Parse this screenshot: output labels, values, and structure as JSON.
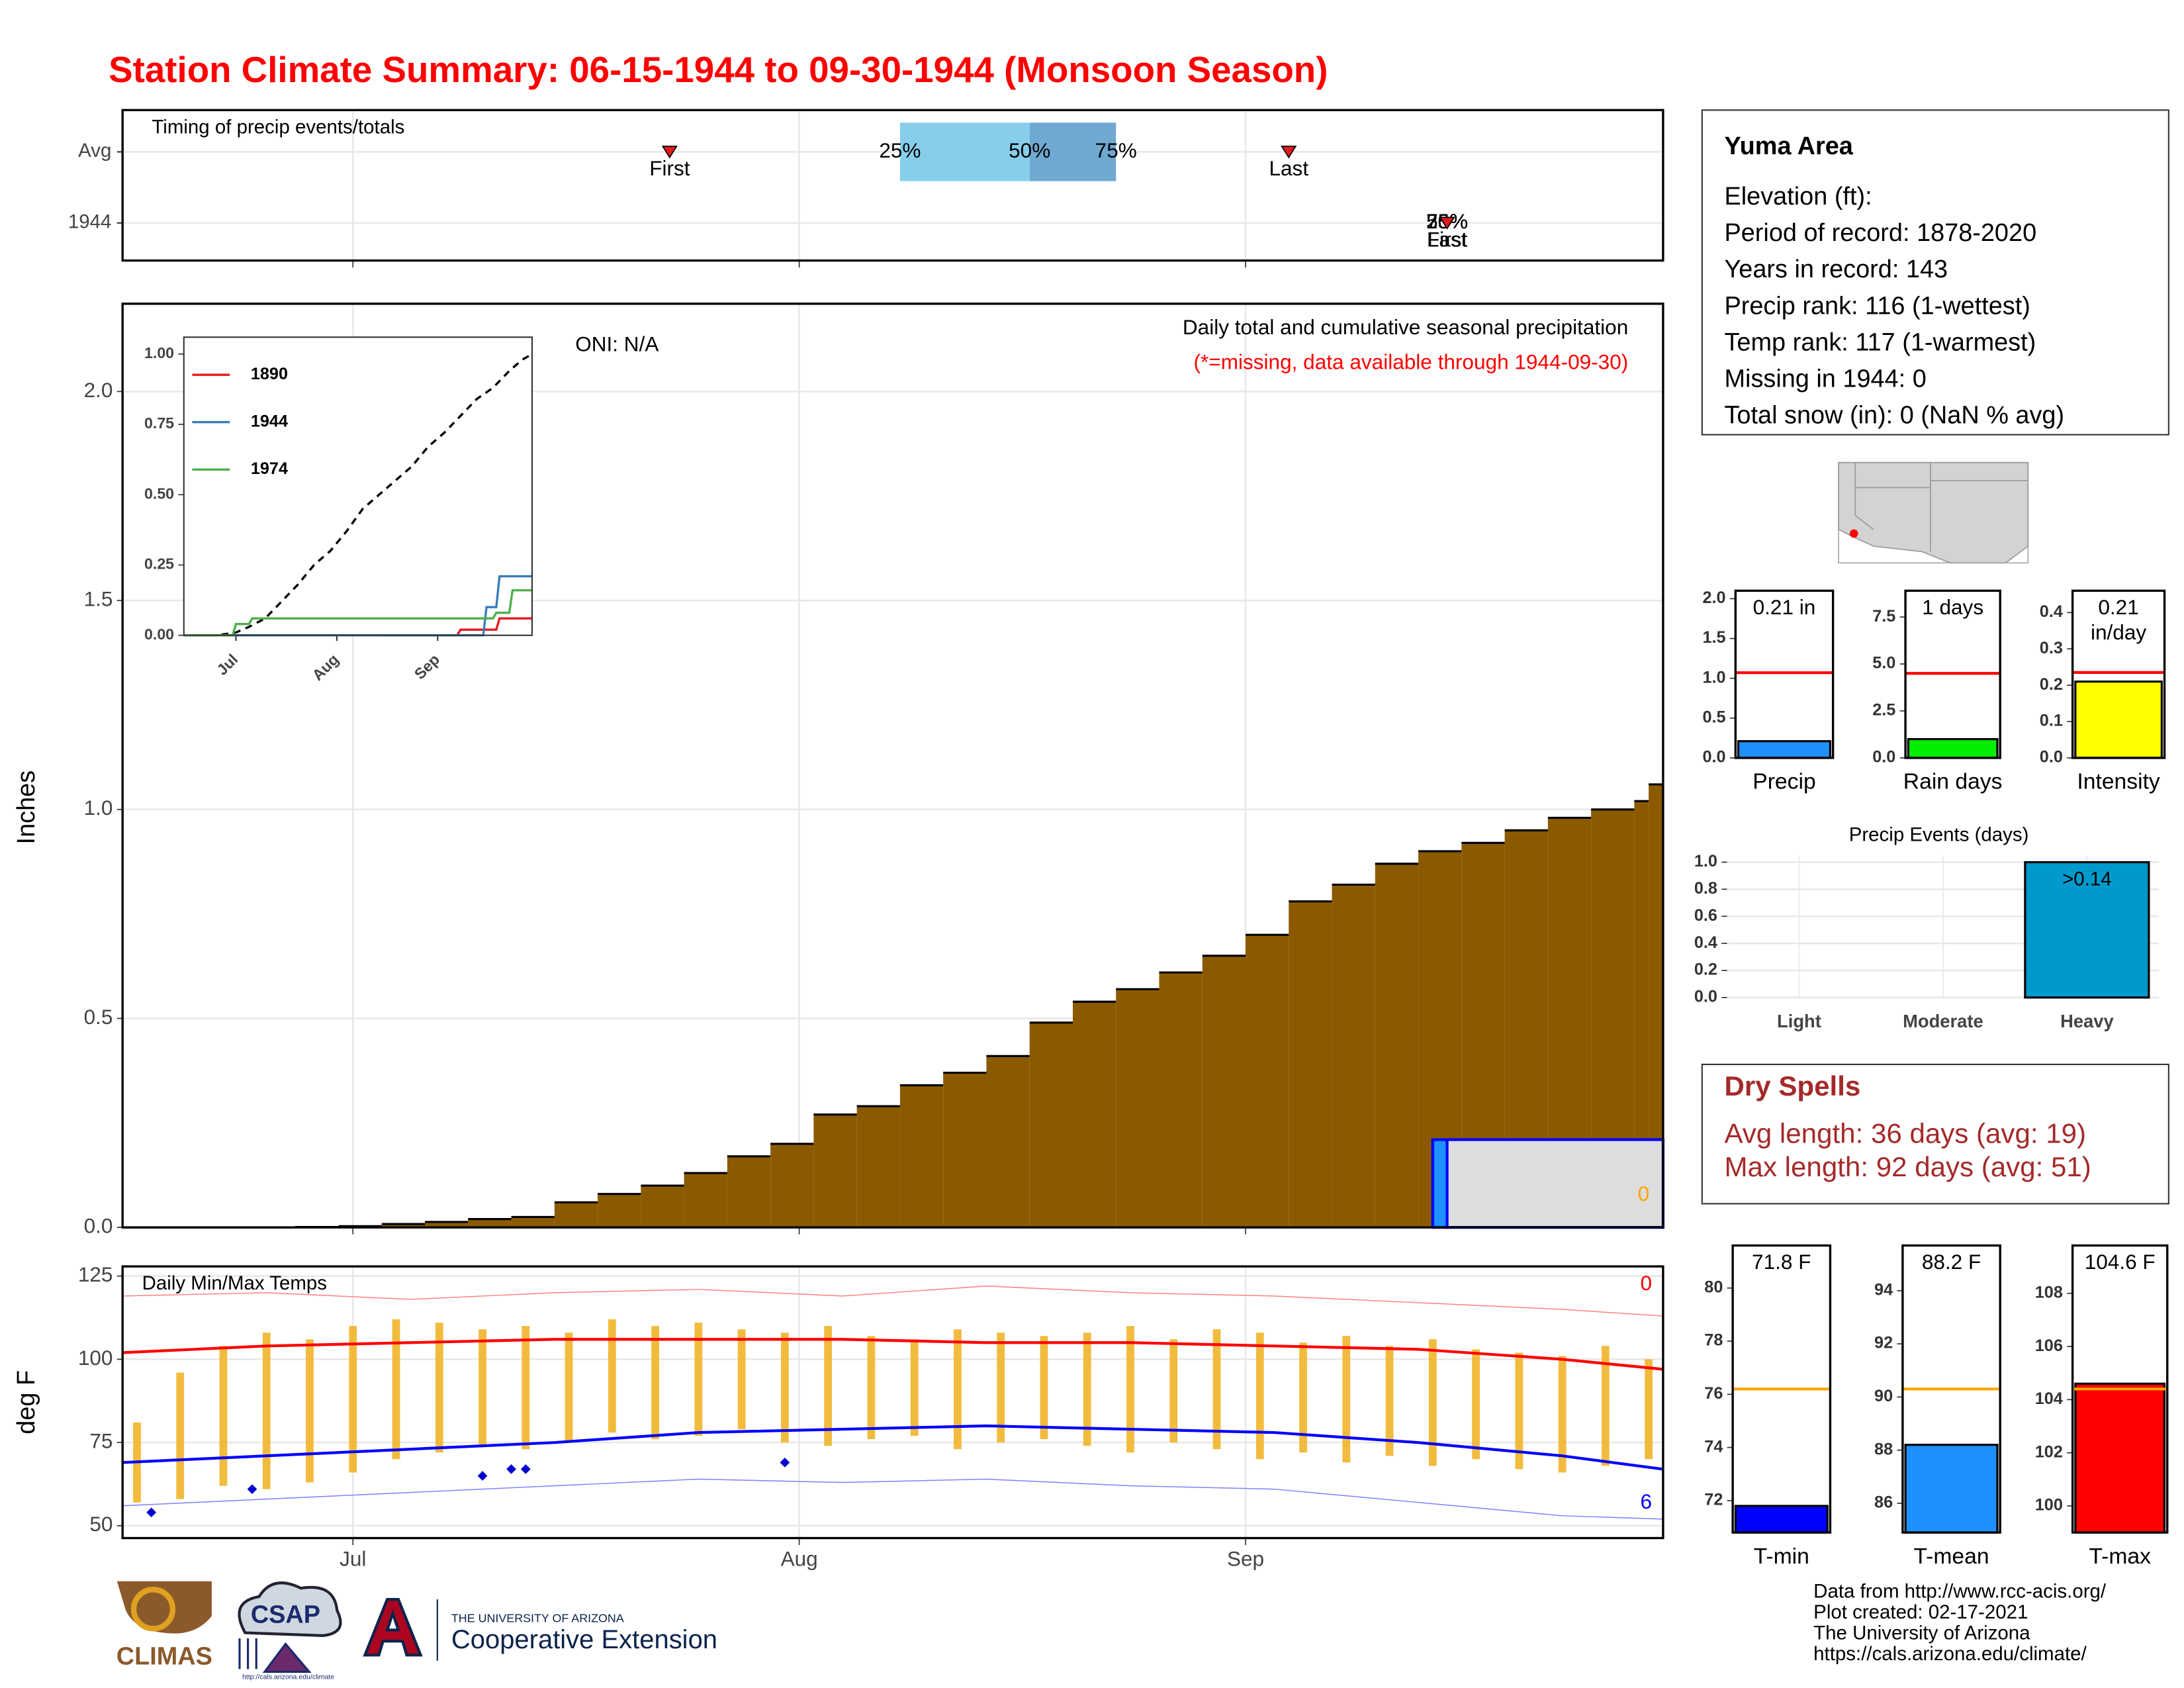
{
  "title": "Station Climate Summary: 06-15-1944 to 09-30-1944 (Monsoon Season)",
  "chart_data": [
    {
      "type": "timing",
      "title": "Timing of precip events/totals",
      "categories": [
        "Avg",
        "1944"
      ],
      "xlim": [
        0,
        107
      ],
      "xticks": [
        16,
        47,
        78
      ],
      "grid": true,
      "first": [
        38,
        92
      ],
      "last": [
        81,
        92
      ],
      "quartiles": [
        [
          54,
          63,
          69
        ],
        [
          92,
          92,
          92
        ]
      ],
      "marker_labels": [
        "First",
        "Last"
      ],
      "quartile_labels": [
        "25%",
        "50%",
        "75%"
      ],
      "marker_color": "#e41a1c",
      "quartile_colors": [
        "#87ceeb",
        "#6fa8d0"
      ]
    },
    {
      "type": "step_area",
      "ylabel": "Inches",
      "xlim": [
        0,
        107
      ],
      "xticks": [
        16,
        47,
        78
      ],
      "ylim": [
        0,
        2.21
      ],
      "yticks": [
        {
          "value": 0,
          "label": "0.0"
        },
        {
          "value": 0.5,
          "label": "0.5"
        },
        {
          "value": 1,
          "label": "1.0"
        },
        {
          "value": 1.5,
          "label": "1.5"
        },
        {
          "value": 2,
          "label": "2.0"
        }
      ],
      "grid": true,
      "annotations": [
        "ONI: N/A",
        "Daily total and cumulative seasonal precipitation",
        "(*=missing, data available through 1944-09-30)",
        "0"
      ],
      "series": [
        {
          "colors": [
            "#8b5a00"
          ],
          "x": [
            0,
            3,
            6,
            9,
            12,
            15,
            18,
            21,
            24,
            27,
            30,
            33,
            36,
            39,
            42,
            45,
            48,
            51,
            54,
            57,
            60,
            63,
            66,
            69,
            72,
            75,
            78,
            81,
            84,
            87,
            90,
            93,
            96,
            99,
            102,
            105,
            106
          ],
          "values": [
            0,
            0,
            0,
            0,
            0.001,
            0.003,
            0.008,
            0.013,
            0.02,
            0.025,
            0.06,
            0.08,
            0.1,
            0.13,
            0.17,
            0.2,
            0.27,
            0.29,
            0.34,
            0.37,
            0.41,
            0.49,
            0.54,
            0.57,
            0.61,
            0.65,
            0.7,
            0.78,
            0.82,
            0.87,
            0.9,
            0.92,
            0.95,
            0.98,
            1.0,
            1.02,
            1.06
          ]
        },
        {
          "colors": [
            "#1e90ff",
            "#dddddd"
          ],
          "stroke": "#0000ff",
          "x": [
            91,
            92
          ],
          "values": [
            0.21,
            0.21
          ]
        }
      ]
    },
    {
      "type": "line",
      "xlim": [
        0,
        107
      ],
      "xticks": [
        {
          "value": 16,
          "label": "Jul"
        },
        {
          "value": 47,
          "label": "Aug"
        },
        {
          "value": 78,
          "label": "Sep"
        }
      ],
      "ylim": [
        0,
        1.06
      ],
      "yticks": [
        {
          "value": 0,
          "label": "0.00"
        },
        {
          "value": 0.25,
          "label": "0.25"
        },
        {
          "value": 0.5,
          "label": "0.50"
        },
        {
          "value": 0.75,
          "label": "0.75"
        },
        {
          "value": 1,
          "label": "1.00"
        }
      ],
      "series": [
        {
          "color": "#000000",
          "dash": true,
          "x": [
            0,
            10,
            16,
            20,
            25,
            30,
            35,
            40,
            45,
            50,
            55,
            60,
            65,
            70,
            75,
            80,
            85,
            90,
            95,
            100,
            104,
            107
          ],
          "values": [
            0,
            0,
            0.01,
            0.03,
            0.06,
            0.12,
            0.18,
            0.25,
            0.3,
            0.37,
            0.45,
            0.5,
            0.55,
            0.6,
            0.67,
            0.72,
            0.78,
            0.84,
            0.88,
            0.94,
            0.98,
            1.0
          ]
        },
        {
          "name": "1890",
          "color": "#e41a1c",
          "x": [
            60,
            84,
            85,
            96,
            97,
            107
          ],
          "values": [
            0,
            0,
            0.02,
            0.02,
            0.06,
            0.06
          ]
        },
        {
          "name": "1944",
          "color": "#377eb8",
          "x": [
            0,
            92,
            93,
            96,
            97,
            107
          ],
          "values": [
            0,
            0,
            0.1,
            0.1,
            0.21,
            0.21
          ]
        },
        {
          "name": "1974",
          "color": "#4daf4a",
          "x": [
            0,
            15,
            16,
            20,
            21,
            95,
            96,
            100,
            101,
            107
          ],
          "values": [
            0,
            0,
            0.04,
            0.04,
            0.06,
            0.06,
            0.08,
            0.08,
            0.16,
            0.16
          ]
        }
      ]
    },
    {
      "type": "temps",
      "title": "Daily Min/Max Temps",
      "ylabel": "deg F",
      "xlim": [
        0,
        107
      ],
      "xticks": [
        {
          "value": 16,
          "label": "Jul"
        },
        {
          "value": 47,
          "label": "Aug"
        },
        {
          "value": 78,
          "label": "Sep"
        }
      ],
      "ylim": [
        46.3,
        127.9
      ],
      "yticks": [
        50,
        75,
        100,
        125
      ],
      "grid": true,
      "annotations": [
        {
          "text": "0",
          "color": "#ff0000"
        },
        {
          "text": "6",
          "color": "#0000ff"
        }
      ],
      "bars": {
        "color": "#f0b429",
        "x": [
          1,
          4,
          7,
          10,
          13,
          16,
          19,
          22,
          25,
          28,
          31,
          34,
          37,
          40,
          43,
          46,
          49,
          52,
          55,
          58,
          61,
          64,
          67,
          70,
          73,
          76,
          79,
          82,
          85,
          88,
          91,
          94,
          97,
          100,
          103,
          106
        ],
        "low": [
          57,
          58,
          62,
          61,
          63,
          66,
          70,
          72,
          74,
          73,
          75,
          78,
          76,
          77,
          79,
          75,
          74,
          76,
          77,
          73,
          75,
          76,
          74,
          72,
          75,
          73,
          70,
          72,
          69,
          71,
          68,
          70,
          67,
          66,
          68,
          70
        ],
        "high": [
          81,
          96,
          104,
          108,
          106,
          110,
          112,
          111,
          109,
          110,
          108,
          112,
          110,
          111,
          109,
          108,
          110,
          107,
          106,
          109,
          108,
          107,
          108,
          110,
          106,
          109,
          108,
          105,
          107,
          104,
          106,
          103,
          102,
          101,
          104,
          100
        ]
      },
      "lines": [
        {
          "color": "#ff0000",
          "width": 2,
          "x": [
            0,
            10,
            20,
            30,
            40,
            50,
            60,
            70,
            80,
            90,
            100,
            107
          ],
          "values": [
            102,
            104,
            105,
            106,
            106,
            106,
            105,
            105,
            104,
            103,
            100,
            97
          ]
        },
        {
          "color": "#0000ff",
          "width": 2,
          "x": [
            0,
            10,
            20,
            30,
            40,
            50,
            60,
            70,
            80,
            90,
            100,
            107
          ],
          "values": [
            69,
            71,
            73,
            75,
            78,
            79,
            80,
            79,
            78,
            75,
            71,
            67
          ]
        },
        {
          "color": "#ff8080",
          "width": 0.7,
          "x": [
            0,
            10,
            20,
            30,
            40,
            50,
            60,
            70,
            80,
            90,
            100,
            107
          ],
          "values": [
            119,
            120,
            118,
            120,
            121,
            119,
            122,
            120,
            119,
            117,
            115,
            113
          ]
        },
        {
          "color": "#8080ff",
          "width": 0.7,
          "x": [
            0,
            10,
            20,
            30,
            40,
            50,
            60,
            70,
            80,
            90,
            100,
            107
          ],
          "values": [
            56,
            58,
            60,
            62,
            64,
            63,
            64,
            62,
            61,
            57,
            53,
            52
          ]
        }
      ],
      "markers": {
        "color": "#0000cc",
        "x": [
          2,
          9,
          25,
          27,
          28,
          46
        ],
        "values": [
          54,
          61,
          65,
          67,
          67,
          69
        ]
      }
    },
    {
      "type": "gauge",
      "xlabel": "Precip",
      "value": 0.21,
      "value_label": [
        "0.21 in"
      ],
      "average": 1.07,
      "color": "#1e90ff",
      "avg_color": "#ff0000",
      "ylim": [
        0,
        2.1
      ],
      "yticks": [
        {
          "value": 0,
          "label": "0.0"
        },
        {
          "value": 0.5,
          "label": "0.5"
        },
        {
          "value": 1,
          "label": "1.0"
        },
        {
          "value": 1.5,
          "label": "1.5"
        },
        {
          "value": 2,
          "label": "2.0"
        }
      ]
    },
    {
      "type": "gauge",
      "xlabel": "Rain days",
      "value": 1,
      "value_label": [
        "1 days"
      ],
      "average": 4.5,
      "color": "#00ee00",
      "avg_color": "#ff0000",
      "ylim": [
        0,
        8.9
      ],
      "yticks": [
        {
          "value": 0,
          "label": "0.0"
        },
        2.5,
        {
          "value": 5,
          "label": "5.0"
        },
        7.5
      ]
    },
    {
      "type": "gauge",
      "xlabel": "Intensity",
      "value": 0.21,
      "value_label": [
        "0.21",
        "in/day"
      ],
      "average": 0.235,
      "color": "#ffff00",
      "avg_color": "#ff0000",
      "ylim": [
        0,
        0.46
      ],
      "yticks": [
        {
          "value": 0,
          "label": "0.0"
        },
        0.1,
        0.2,
        0.3,
        0.4
      ]
    },
    {
      "type": "bar",
      "title": "Precip Events (days)",
      "categories": [
        "Light",
        "Moderate",
        "Heavy"
      ],
      "values": [
        0,
        0,
        1
      ],
      "color": "#0099cc",
      "category_notes": {
        "Heavy": ">0.14"
      },
      "ylim": [
        0,
        1.05
      ],
      "grid": true,
      "yticks": [
        {
          "value": 0,
          "label": "0.0"
        },
        0.2,
        0.4,
        0.6,
        0.8,
        {
          "value": 1,
          "label": "1.0"
        }
      ]
    },
    {
      "type": "gauge",
      "xlabel": "T-min",
      "value": 71.8,
      "value_label": [
        "71.8 F"
      ],
      "average": 76.2,
      "color": "#0000ff",
      "avg_color": "#ffa500",
      "ylim": [
        70.8,
        81.6
      ],
      "yticks": [
        72,
        74,
        76,
        78,
        80
      ]
    },
    {
      "type": "gauge",
      "xlabel": "T-mean",
      "value": 88.2,
      "value_label": [
        "88.2 F"
      ],
      "average": 90.3,
      "color": "#1e90ff",
      "avg_color": "#ffa500",
      "ylim": [
        84.9,
        95.7
      ],
      "yticks": [
        86,
        88,
        90,
        92,
        94
      ]
    },
    {
      "type": "gauge",
      "xlabel": "T-max",
      "value": 104.6,
      "value_label": [
        "104.6 F"
      ],
      "average": 104.4,
      "color": "#ff0000",
      "avg_color": "#ffa500",
      "ylim": [
        99.0,
        109.8
      ],
      "yticks": [
        100,
        102,
        104,
        106,
        108
      ]
    }
  ],
  "info": {
    "title": "Yuma Area",
    "lines": [
      "Elevation (ft):",
      "Period of record: 1878-2020",
      "Years in record: 143",
      "Precip rank: 116 (1-wettest)",
      "Temp rank: 117 (1-warmest)",
      "Missing in 1944: 0",
      "Total snow (in): 0 (NaN % avg)"
    ]
  },
  "dry_spells": {
    "title": "Dry Spells",
    "lines": [
      "Avg length: 36 days (avg: 19)",
      "Max length: 92 days (avg: 51)"
    ]
  },
  "footer": {
    "lines": [
      "Data from http://www.rcc-acis.org/",
      "Plot created: 02-17-2021",
      "The University of Arizona",
      "https://cals.arizona.edu/climate/"
    ]
  },
  "logos": {
    "climas": "CLIMAS",
    "csap": "CSAP",
    "csap_url": "http://cals.arizona.edu/climate",
    "ua": "THE UNIVERSITY OF ARIZONA",
    "extension": "Cooperative Extension"
  }
}
